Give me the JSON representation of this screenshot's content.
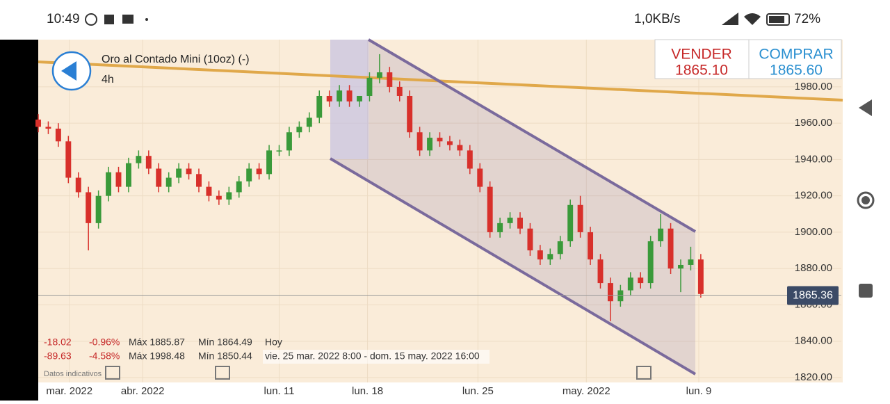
{
  "status_bar": {
    "time": "10:49",
    "speed": "1,0KB/s",
    "battery": "72%"
  },
  "header": {
    "title": "Oro al Contado Mini (10oz) (-)",
    "interval": "4h"
  },
  "prices": {
    "sell_label": "VENDER",
    "sell": "1865.10",
    "buy_label": "COMPRAR",
    "buy": "1865.60"
  },
  "info": {
    "rows": [
      [
        "-18.02",
        "-0.96%",
        "Máx 1885.87",
        "Mín 1864.49",
        "Hoy"
      ],
      [
        "-89.63",
        "-4.58%",
        "Máx 1998.48",
        "Mín 1850.44",
        "vie. 25 mar. 2022 8:00 - dom. 15 may. 2022 16:00"
      ]
    ],
    "note": "Datos indicativos"
  },
  "chart_data": {
    "type": "candlestick",
    "xlim": [
      0,
      80
    ],
    "ylim": [
      1817.3,
      2006
    ],
    "xticks": [
      {
        "value": 3.1,
        "label": "mar. 2022"
      },
      {
        "value": 10.4,
        "label": "abr. 2022"
      },
      {
        "value": 24,
        "label": "lun. 11"
      },
      {
        "value": 32.8,
        "label": "lun. 18"
      },
      {
        "value": 43.8,
        "label": "lun. 25"
      },
      {
        "value": 54.6,
        "label": "may. 2022"
      },
      {
        "value": 65.8,
        "label": "lun. 9"
      }
    ],
    "yticks": [
      {
        "value": 1820,
        "label": "1820.00"
      },
      {
        "value": 1840,
        "label": "1840.00"
      },
      {
        "value": 1860,
        "label": "1860.00"
      },
      {
        "value": 1880,
        "label": "1880.00"
      },
      {
        "value": 1900,
        "label": "1900.00"
      },
      {
        "value": 1920,
        "label": "1920.00"
      },
      {
        "value": 1940,
        "label": "1940.00"
      },
      {
        "value": 1960,
        "label": "1960.00"
      },
      {
        "value": 1980,
        "label": "1980.00"
      }
    ],
    "current_price": {
      "value": 1865.36,
      "label": "1865.36"
    },
    "up_color": "#3a9a3a",
    "down_color": "#d8302b",
    "open": [
      1962,
      1958,
      1957,
      1950,
      1930,
      1922,
      1905,
      1920,
      1933,
      1925,
      1938,
      1942,
      1935,
      1925,
      1930,
      1935,
      1932,
      1925,
      1920,
      1918,
      1922,
      1928,
      1935,
      1932,
      1945,
      1945,
      1955,
      1958,
      1963,
      1975,
      1972,
      1978,
      1972,
      1975,
      1985,
      1988,
      1980,
      1975,
      1955,
      1945,
      1952,
      1950,
      1948,
      1945,
      1935,
      1925,
      1900,
      1905,
      1908,
      1902,
      1890,
      1885,
      1888,
      1895,
      1915,
      1900,
      1885,
      1872,
      1862,
      1868,
      1875,
      1872,
      1895,
      1902,
      1880,
      1882,
      1885
    ],
    "high": [
      1965,
      1961,
      1960,
      1953,
      1933,
      1925,
      1923,
      1936,
      1936,
      1941,
      1945,
      1945,
      1938,
      1933,
      1938,
      1938,
      1935,
      1928,
      1923,
      1925,
      1931,
      1938,
      1938,
      1948,
      1948,
      1958,
      1961,
      1966,
      1978,
      1978,
      1981,
      1981,
      1975,
      1988,
      1998,
      1991,
      1983,
      1978,
      1958,
      1955,
      1955,
      1953,
      1951,
      1948,
      1938,
      1928,
      1908,
      1911,
      1911,
      1905,
      1893,
      1891,
      1898,
      1918,
      1920,
      1903,
      1888,
      1875,
      1871,
      1878,
      1878,
      1898,
      1910,
      1905,
      1885,
      1892,
      1888
    ],
    "low": [
      1955,
      1954,
      1947,
      1927,
      1919,
      1890,
      1902,
      1917,
      1922,
      1922,
      1935,
      1932,
      1922,
      1922,
      1927,
      1929,
      1922,
      1917,
      1915,
      1915,
      1919,
      1925,
      1929,
      1929,
      1942,
      1942,
      1952,
      1955,
      1960,
      1969,
      1969,
      1969,
      1969,
      1972,
      1982,
      1977,
      1972,
      1952,
      1942,
      1942,
      1947,
      1945,
      1942,
      1932,
      1922,
      1897,
      1897,
      1902,
      1899,
      1887,
      1882,
      1882,
      1885,
      1892,
      1897,
      1882,
      1869,
      1851,
      1859,
      1865,
      1869,
      1869,
      1892,
      1877,
      1867,
      1879,
      1864
    ],
    "close": [
      1958,
      1957,
      1950,
      1930,
      1922,
      1905,
      1920,
      1933,
      1925,
      1938,
      1942,
      1935,
      1925,
      1930,
      1935,
      1932,
      1925,
      1920,
      1918,
      1922,
      1928,
      1935,
      1932,
      1945,
      1945,
      1955,
      1958,
      1963,
      1975,
      1972,
      1978,
      1972,
      1975,
      1985,
      1988,
      1980,
      1975,
      1955,
      1945,
      1952,
      1950,
      1948,
      1945,
      1935,
      1925,
      1900,
      1905,
      1908,
      1902,
      1890,
      1885,
      1888,
      1895,
      1915,
      1900,
      1885,
      1872,
      1862,
      1868,
      1875,
      1872,
      1895,
      1902,
      1880,
      1882,
      1885,
      1866
    ]
  }
}
